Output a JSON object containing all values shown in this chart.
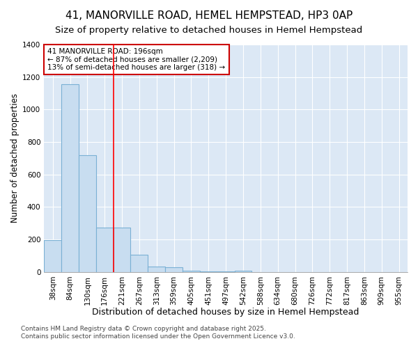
{
  "title": "41, MANORVILLE ROAD, HEMEL HEMPSTEAD, HP3 0AP",
  "subtitle": "Size of property relative to detached houses in Hemel Hempstead",
  "xlabel": "Distribution of detached houses by size in Hemel Hempstead",
  "ylabel": "Number of detached properties",
  "categories": [
    "38sqm",
    "84sqm",
    "130sqm",
    "176sqm",
    "221sqm",
    "267sqm",
    "313sqm",
    "359sqm",
    "405sqm",
    "451sqm",
    "497sqm",
    "542sqm",
    "588sqm",
    "634sqm",
    "680sqm",
    "726sqm",
    "772sqm",
    "817sqm",
    "863sqm",
    "909sqm",
    "955sqm"
  ],
  "values": [
    195,
    1155,
    720,
    275,
    275,
    108,
    32,
    28,
    10,
    5,
    5,
    10,
    0,
    0,
    0,
    0,
    0,
    0,
    0,
    0,
    0
  ],
  "bar_color": "#c8ddf0",
  "bar_edge_color": "#7ab0d4",
  "red_line_x": 3.5,
  "annotation_text": "41 MANORVILLE ROAD: 196sqm\n← 87% of detached houses are smaller (2,209)\n13% of semi-detached houses are larger (318) →",
  "annotation_box_color": "#ffffff",
  "annotation_box_edge_color": "#cc0000",
  "ylim": [
    0,
    1400
  ],
  "yticks": [
    0,
    200,
    400,
    600,
    800,
    1000,
    1200,
    1400
  ],
  "plot_bg_color": "#dce8f5",
  "fig_bg_color": "#ffffff",
  "grid_color": "#ffffff",
  "footer_line1": "Contains HM Land Registry data © Crown copyright and database right 2025.",
  "footer_line2": "Contains public sector information licensed under the Open Government Licence v3.0.",
  "title_fontsize": 11,
  "subtitle_fontsize": 9.5,
  "xlabel_fontsize": 9,
  "ylabel_fontsize": 8.5,
  "tick_fontsize": 7.5,
  "annotation_fontsize": 7.5,
  "footer_fontsize": 6.5
}
